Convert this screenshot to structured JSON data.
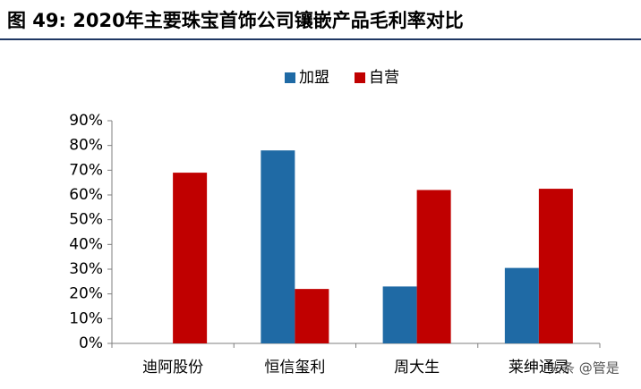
{
  "chart_data": {
    "type": "bar",
    "title": "图 49: 2020年主要珠宝首饰公司镶嵌产品毛利率对比",
    "categories": [
      "迪阿股份",
      "恒信玺利",
      "周大生",
      "莱绅通灵"
    ],
    "series": [
      {
        "name": "加盟",
        "color": "#1f6aa5",
        "values": [
          null,
          78,
          23,
          30.5
        ]
      },
      {
        "name": "自营",
        "color": "#c00000",
        "values": [
          69,
          22,
          62,
          62.5
        ]
      }
    ],
    "ylim": [
      0,
      90
    ],
    "yticks": [
      {
        "value": 0,
        "label": "0%"
      },
      {
        "value": 10,
        "label": "10%"
      },
      {
        "value": 20,
        "label": "20%"
      },
      {
        "value": 30,
        "label": "30%"
      },
      {
        "value": 40,
        "label": "40%"
      },
      {
        "value": 50,
        "label": "50%"
      },
      {
        "value": 60,
        "label": "60%"
      },
      {
        "value": 70,
        "label": "70%"
      },
      {
        "value": 80,
        "label": "80%"
      },
      {
        "value": 90,
        "label": "90%"
      }
    ],
    "grid": false,
    "legend": "top",
    "watermark": "头条 @管是"
  }
}
